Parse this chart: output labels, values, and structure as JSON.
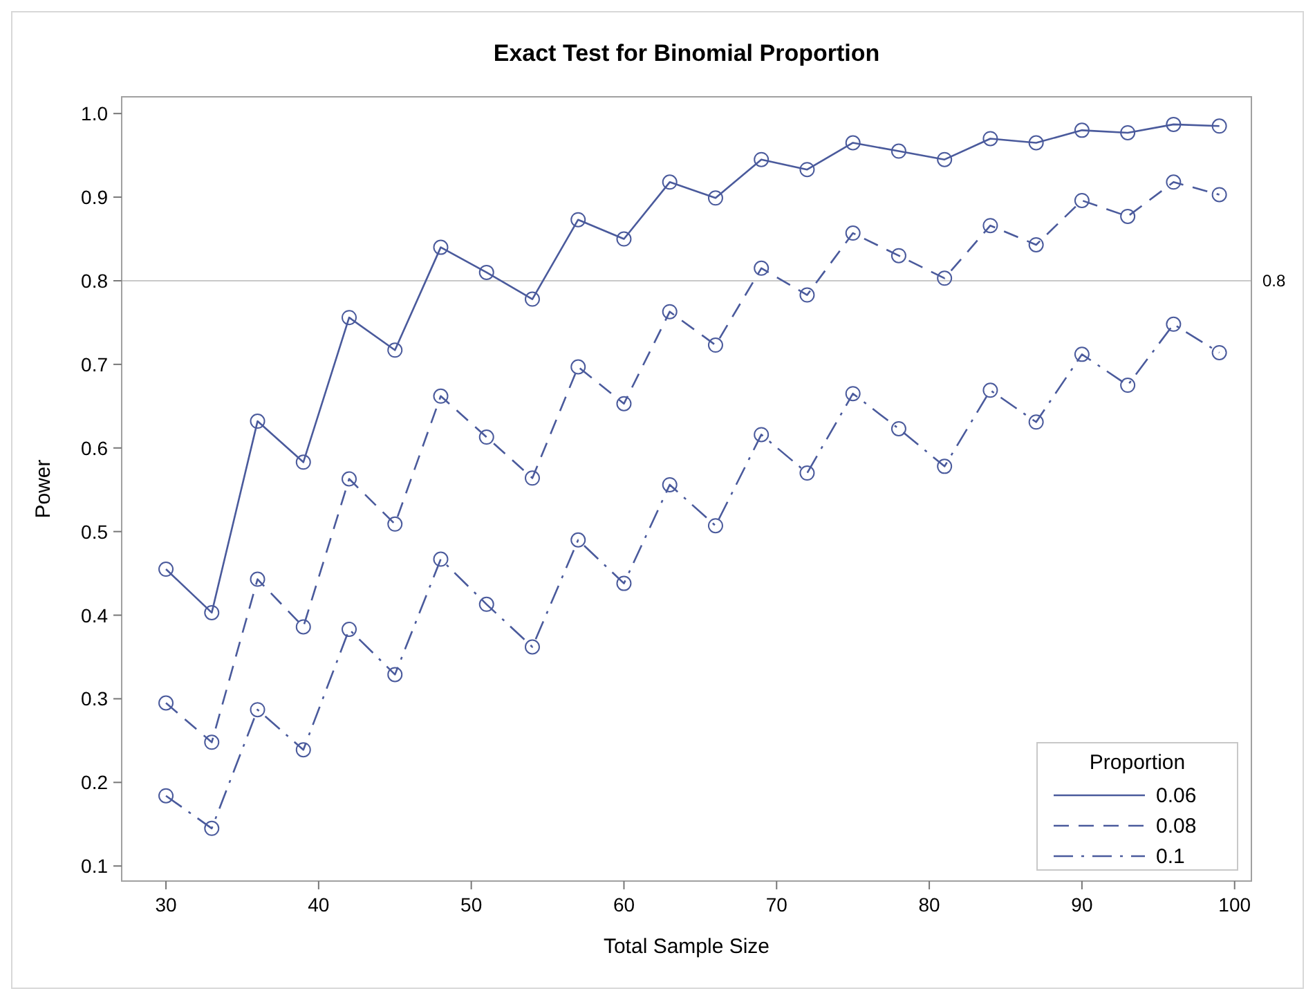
{
  "chart_data": {
    "type": "line",
    "title": "Exact Test for Binomial Proportion",
    "xlabel": "Total Sample Size",
    "ylabel": "Power",
    "legend_title": "Proportion",
    "x": [
      30,
      33,
      36,
      39,
      42,
      45,
      48,
      51,
      54,
      57,
      60,
      63,
      66,
      69,
      72,
      75,
      78,
      81,
      84,
      87,
      90,
      93,
      96,
      99
    ],
    "series": [
      {
        "name": "0.06",
        "color": "#4a5a9c",
        "line_style": "solid",
        "values": [
          0.455,
          0.403,
          0.632,
          0.583,
          0.756,
          0.717,
          0.84,
          0.81,
          0.778,
          0.873,
          0.85,
          0.918,
          0.899,
          0.945,
          0.933,
          0.965,
          0.955,
          0.945,
          0.97,
          0.965,
          0.98,
          0.977,
          0.987,
          0.985
        ]
      },
      {
        "name": "0.08",
        "color": "#4a5a9c",
        "line_style": "dashed",
        "values": [
          0.295,
          0.248,
          0.443,
          0.386,
          0.563,
          0.509,
          0.662,
          0.613,
          0.564,
          0.697,
          0.653,
          0.763,
          0.723,
          0.815,
          0.783,
          0.857,
          0.83,
          0.803,
          0.866,
          0.843,
          0.896,
          0.877,
          0.918,
          0.903
        ]
      },
      {
        "name": "0.1",
        "color": "#4a5a9c",
        "line_style": "dashdot",
        "values": [
          0.184,
          0.145,
          0.287,
          0.239,
          0.383,
          0.329,
          0.467,
          0.413,
          0.362,
          0.49,
          0.438,
          0.556,
          0.507,
          0.616,
          0.57,
          0.665,
          0.623,
          0.578,
          0.669,
          0.631,
          0.712,
          0.675,
          0.748,
          0.714
        ]
      }
    ],
    "xlim": [
      27.1,
      101.1
    ],
    "xticks": [
      30,
      40,
      50,
      60,
      70,
      80,
      90,
      100
    ],
    "ylim": [
      0.082,
      1.02
    ],
    "yticks": [
      {
        "value": 0.1,
        "label": "0.1"
      },
      {
        "value": 0.2,
        "label": "0.2"
      },
      {
        "value": 0.3,
        "label": "0.3"
      },
      {
        "value": 0.4,
        "label": "0.4"
      },
      {
        "value": 0.5,
        "label": "0.5"
      },
      {
        "value": 0.6,
        "label": "0.6"
      },
      {
        "value": 0.7,
        "label": "0.7"
      },
      {
        "value": 0.8,
        "label": "0.8"
      },
      {
        "value": 0.9,
        "label": "0.9"
      },
      {
        "value": 1.0,
        "label": "1.0"
      }
    ],
    "ref_lines": [
      {
        "axis": "y",
        "value": 0.8,
        "label": "0.8",
        "color": "#c8c8c8"
      }
    ],
    "marker": "circle",
    "legend": "bottom right",
    "grid": false
  }
}
